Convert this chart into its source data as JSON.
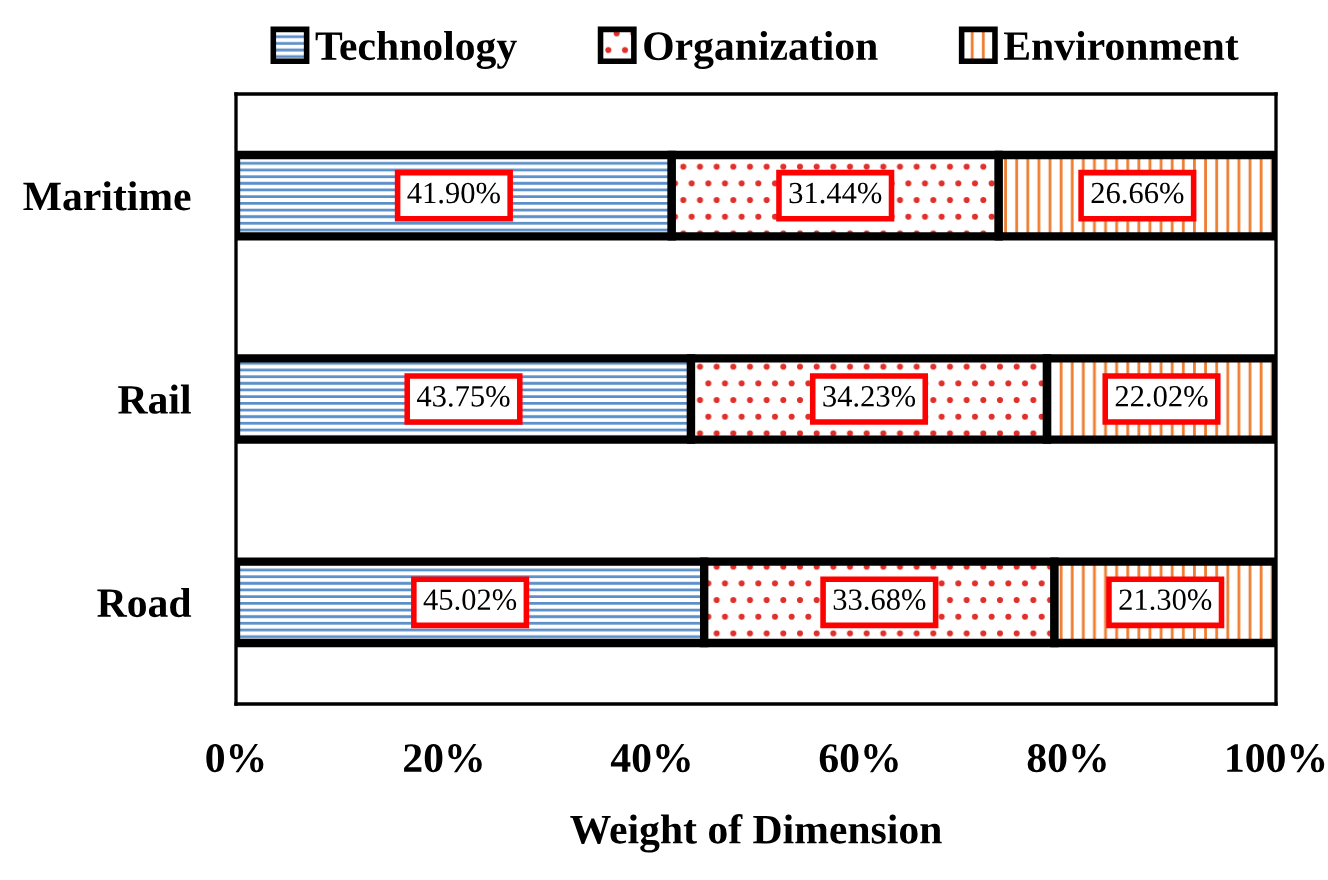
{
  "chart_data": {
    "type": "bar",
    "orientation": "horizontal",
    "stacked": true,
    "xlabel": "Weight of Dimension",
    "categories": [
      "Maritime",
      "Rail",
      "Road"
    ],
    "series": [
      {
        "name": "Technology",
        "color": "#5b8fc9",
        "values": [
          41.9,
          43.75,
          45.02
        ],
        "value_labels": [
          "41.90%",
          "43.75%",
          "45.02%"
        ]
      },
      {
        "name": "Organization",
        "color": "#e0302b",
        "values": [
          31.44,
          34.23,
          33.68
        ],
        "value_labels": [
          "31.44%",
          "34.23%",
          "33.68%"
        ]
      },
      {
        "name": "Environment",
        "color": "#ed7d31",
        "values": [
          26.66,
          22.02,
          21.3
        ],
        "value_labels": [
          "26.66%",
          "22.02%",
          "21.30%"
        ]
      }
    ],
    "xlim": [
      0,
      100
    ],
    "xticks": [
      {
        "value": 0,
        "label": "0%"
      },
      {
        "value": 20,
        "label": "20%"
      },
      {
        "value": 40,
        "label": "40%"
      },
      {
        "value": 60,
        "label": "60%"
      },
      {
        "value": 80,
        "label": "80%"
      },
      {
        "value": 100,
        "label": "100%"
      }
    ],
    "grid": false,
    "legend": "top"
  }
}
